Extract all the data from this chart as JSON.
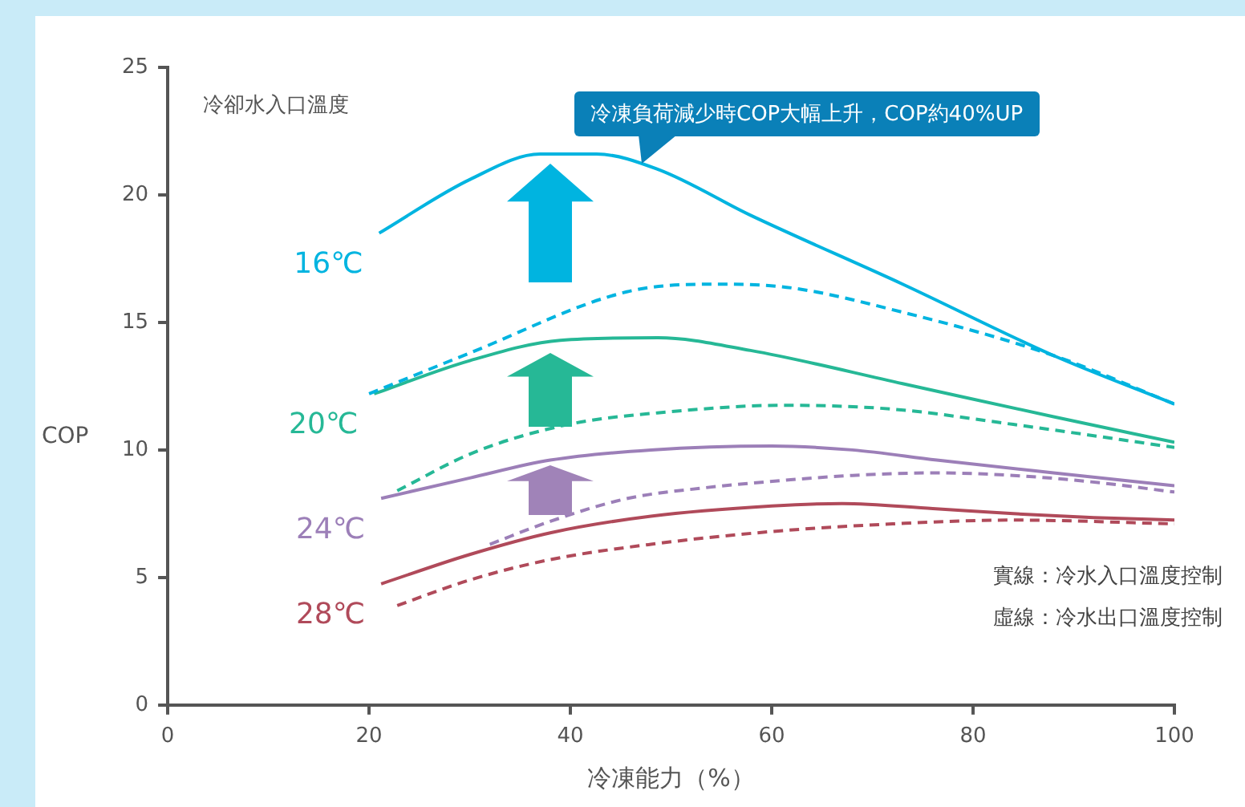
{
  "chart_data": {
    "type": "line",
    "xlabel": "冷凍能力（%）",
    "ylabel": "COP",
    "legend_title": "冷卻水入口溫度",
    "annotations": [
      "冷凍負荷減少時COP大幅上升，COP約40%UP",
      "實線：冷水入口溫度控制",
      "虛線：冷水出口溫度控制"
    ],
    "xlim": [
      0,
      100
    ],
    "xticks": [
      0,
      20,
      40,
      60,
      80,
      100
    ],
    "ylim": [
      0,
      25
    ],
    "yticks": [
      0,
      5,
      10,
      15,
      20,
      25
    ],
    "grid": false,
    "legend": false,
    "marker": "none",
    "series": [
      {
        "name": "16℃",
        "color": "#00b4e0",
        "line_style": "solid",
        "x": [
          21,
          30,
          37,
          42.6,
          48.7,
          57.9,
          73,
          88,
          100
        ],
        "values": [
          18.5,
          20.6,
          21.6,
          21.6,
          21,
          19.2,
          16.5,
          13.7,
          11.8
        ]
      },
      {
        "color": "#00b4e0",
        "line_style": "dashed",
        "x": [
          20,
          30,
          45.6,
          54,
          61,
          73,
          88,
          100
        ],
        "values": [
          12.2,
          13.8,
          16.2,
          16.5,
          16.4,
          15.4,
          13.7,
          11.8
        ]
      },
      {
        "name": "20℃",
        "color": "#26b896",
        "line_style": "solid",
        "x": [
          20.5,
          30,
          39,
          48.7,
          57.9,
          73,
          88,
          100
        ],
        "values": [
          12.2,
          13.5,
          14.3,
          14.4,
          13.9,
          12.6,
          11.3,
          10.3
        ]
      },
      {
        "color": "#26b896",
        "line_style": "dashed",
        "x": [
          22.8,
          30.4,
          39.8,
          50,
          61,
          72,
          84,
          100
        ],
        "values": [
          8.4,
          9.9,
          11,
          11.5,
          11.75,
          11.6,
          11,
          10.1
        ]
      },
      {
        "name": "24℃",
        "color": "#9c7fb8",
        "line_style": "solid",
        "x": [
          21.2,
          30,
          38,
          48,
          60,
          68,
          76.4,
          88,
          100
        ],
        "values": [
          8.1,
          8.9,
          9.6,
          10,
          10.15,
          10,
          9.6,
          9.1,
          8.6
        ]
      },
      {
        "color": "#9c7fb8",
        "line_style": "dashed",
        "x": [
          32,
          38,
          45.7,
          53,
          61,
          68,
          76.4,
          84,
          91.7,
          100
        ],
        "values": [
          6.3,
          7.2,
          8.1,
          8.5,
          8.8,
          9,
          9.1,
          9,
          8.75,
          8.35
        ]
      },
      {
        "name": "28℃",
        "color": "#b04a5a",
        "line_style": "solid",
        "x": [
          21.2,
          30,
          38,
          48,
          60,
          67,
          76,
          84,
          92,
          100
        ],
        "values": [
          4.75,
          5.9,
          6.75,
          7.4,
          7.8,
          7.9,
          7.7,
          7.5,
          7.35,
          7.25
        ]
      },
      {
        "color": "#b04a5a",
        "line_style": "dashed",
        "x": [
          22.8,
          30,
          38,
          48,
          60,
          72,
          84,
          100
        ],
        "values": [
          3.9,
          4.9,
          5.7,
          6.3,
          6.8,
          7.1,
          7.25,
          7.1
        ]
      }
    ]
  }
}
